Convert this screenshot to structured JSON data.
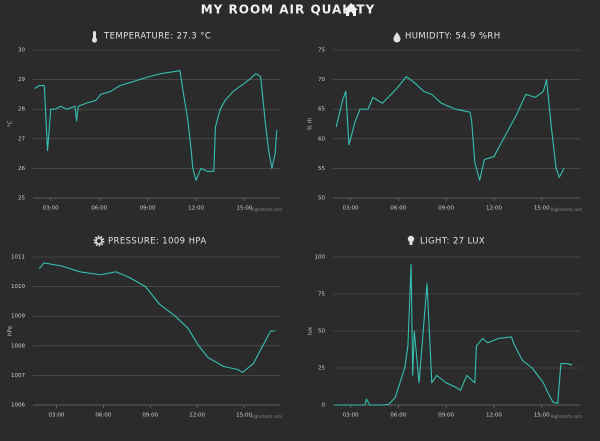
{
  "title": "MY ROOM AIR QUALITY",
  "chart_data": [
    {
      "type": "line",
      "title": "TEMPERATURE: 27.3 °C",
      "ylabel": "°C",
      "credit": "Highcharts.com",
      "color": "#35bfb0",
      "grid": true,
      "xlim": [
        1.9,
        17.2
      ],
      "xticks": [
        {
          "value": 3,
          "label": "03:00"
        },
        {
          "value": 6,
          "label": "06:00"
        },
        {
          "value": 9,
          "label": "09:00"
        },
        {
          "value": 12,
          "label": "12:00"
        },
        {
          "value": 15,
          "label": "15:00"
        }
      ],
      "ylim": [
        25,
        30
      ],
      "yticks": [
        25,
        26,
        27,
        28,
        29,
        30
      ],
      "x": [
        2.0,
        2.3,
        2.6,
        2.8,
        3.0,
        3.3,
        3.6,
        4.0,
        4.5,
        4.6,
        4.7,
        5.2,
        5.8,
        6.1,
        6.7,
        7.3,
        7.9,
        8.5,
        9.1,
        9.8,
        10.4,
        11.0,
        11.2,
        11.5,
        11.7,
        11.8,
        12.0,
        12.3,
        12.7,
        13.1,
        13.2,
        13.5,
        13.8,
        14.3,
        14.8,
        15.3,
        15.7,
        16.0,
        16.3,
        16.5,
        16.7,
        16.9,
        17.0
      ],
      "values": [
        28.7,
        28.8,
        28.8,
        26.6,
        28.0,
        28.0,
        28.1,
        28.0,
        28.1,
        27.6,
        28.1,
        28.2,
        28.3,
        28.5,
        28.6,
        28.8,
        28.9,
        29.0,
        29.1,
        29.2,
        29.25,
        29.3,
        28.6,
        27.6,
        26.6,
        26.0,
        25.6,
        26.0,
        25.9,
        25.9,
        27.4,
        28.0,
        28.3,
        28.6,
        28.8,
        29.0,
        29.2,
        29.1,
        27.5,
        26.6,
        26.0,
        26.5,
        27.3
      ]
    },
    {
      "type": "line",
      "title": "HUMIDITY: 54.9 %RH",
      "ylabel": "% rh",
      "credit": "Highcharts.com",
      "color": "#35bfb0",
      "grid": true,
      "xlim": [
        1.9,
        17.4
      ],
      "xticks": [
        {
          "value": 3,
          "label": "03:00"
        },
        {
          "value": 6,
          "label": "06:00"
        },
        {
          "value": 9,
          "label": "09:00"
        },
        {
          "value": 12,
          "label": "12:00"
        },
        {
          "value": 15,
          "label": "15:00"
        }
      ],
      "ylim": [
        50,
        75
      ],
      "yticks": [
        50,
        55,
        60,
        65,
        70,
        75
      ],
      "x": [
        2.1,
        2.5,
        2.7,
        2.9,
        3.3,
        3.6,
        4.1,
        4.4,
        5.0,
        5.9,
        6.5,
        7.0,
        7.6,
        8.1,
        8.7,
        9.6,
        10.5,
        10.6,
        10.8,
        11.1,
        11.4,
        12.0,
        12.6,
        12.8,
        13.4,
        14.0,
        14.6,
        15.1,
        15.3,
        15.6,
        15.9,
        16.1,
        16.4
      ],
      "values": [
        62,
        66.5,
        68,
        59,
        63,
        65,
        65,
        67,
        66,
        68.5,
        70.5,
        69.5,
        68,
        67.5,
        66,
        65,
        64.5,
        63,
        56,
        53,
        56.5,
        57,
        60,
        61,
        64,
        67.5,
        67,
        68,
        70,
        62,
        55,
        53.5,
        55
      ]
    },
    {
      "type": "line",
      "title": "PRESSURE: 1009 HPA",
      "ylabel": "hPa",
      "credit": "Highcharts.com",
      "color": "#35bfb0",
      "grid": true,
      "xlim": [
        1.5,
        17.3
      ],
      "xticks": [
        {
          "value": 3,
          "label": "03:00"
        },
        {
          "value": 6,
          "label": "06:00"
        },
        {
          "value": 9,
          "label": "09:00"
        },
        {
          "value": 12,
          "label": "12:00"
        },
        {
          "value": 15,
          "label": "15:00"
        }
      ],
      "ylim": [
        1006,
        1011
      ],
      "yticks": [
        1006,
        1007,
        1008,
        1009,
        1010,
        1011
      ],
      "x": [
        1.9,
        2.2,
        3.3,
        4.5,
        5.8,
        6.8,
        7.7,
        8.7,
        9.6,
        10.6,
        11.4,
        12.1,
        12.7,
        13.7,
        14.6,
        14.9,
        15.6,
        16.2,
        16.7,
        17.0
      ],
      "values": [
        1010.6,
        1010.8,
        1010.7,
        1010.5,
        1010.4,
        1010.5,
        1010.3,
        1010.0,
        1009.4,
        1009.0,
        1008.6,
        1008.0,
        1007.6,
        1007.3,
        1007.2,
        1007.1,
        1007.4,
        1008.0,
        1008.5,
        1008.5
      ]
    },
    {
      "type": "line",
      "title": "LIGHT: 27 LUX",
      "ylabel": "lux",
      "credit": "Highcharts.com",
      "color": "#35bfb0",
      "grid": true,
      "xlim": [
        1.9,
        17.4
      ],
      "xticks": [
        {
          "value": 3,
          "label": "03:00"
        },
        {
          "value": 6,
          "label": "06:00"
        },
        {
          "value": 9,
          "label": "09:00"
        },
        {
          "value": 12,
          "label": "12:00"
        },
        {
          "value": 15,
          "label": "15:00"
        }
      ],
      "ylim": [
        0,
        100
      ],
      "yticks": [
        0,
        25,
        50,
        75,
        100
      ],
      "x": [
        2.0,
        3.9,
        4.0,
        4.2,
        5.0,
        5.4,
        5.8,
        6.1,
        6.4,
        6.6,
        6.8,
        6.9,
        7.0,
        7.3,
        7.8,
        8.1,
        8.4,
        9.0,
        9.6,
        9.9,
        10.3,
        10.8,
        10.9,
        11.3,
        11.6,
        12.3,
        13.1,
        13.3,
        13.8,
        14.4,
        15.1,
        15.4,
        15.7,
        16.0,
        16.2,
        16.6,
        16.9
      ],
      "values": [
        0,
        0,
        4,
        0,
        0,
        0.5,
        5,
        15,
        25,
        40,
        95,
        20,
        50,
        15,
        82,
        15,
        20,
        15,
        12,
        10,
        20,
        15,
        40,
        45,
        42,
        45,
        46,
        40,
        30,
        25,
        15,
        8,
        2,
        1,
        28,
        28,
        27
      ]
    }
  ]
}
